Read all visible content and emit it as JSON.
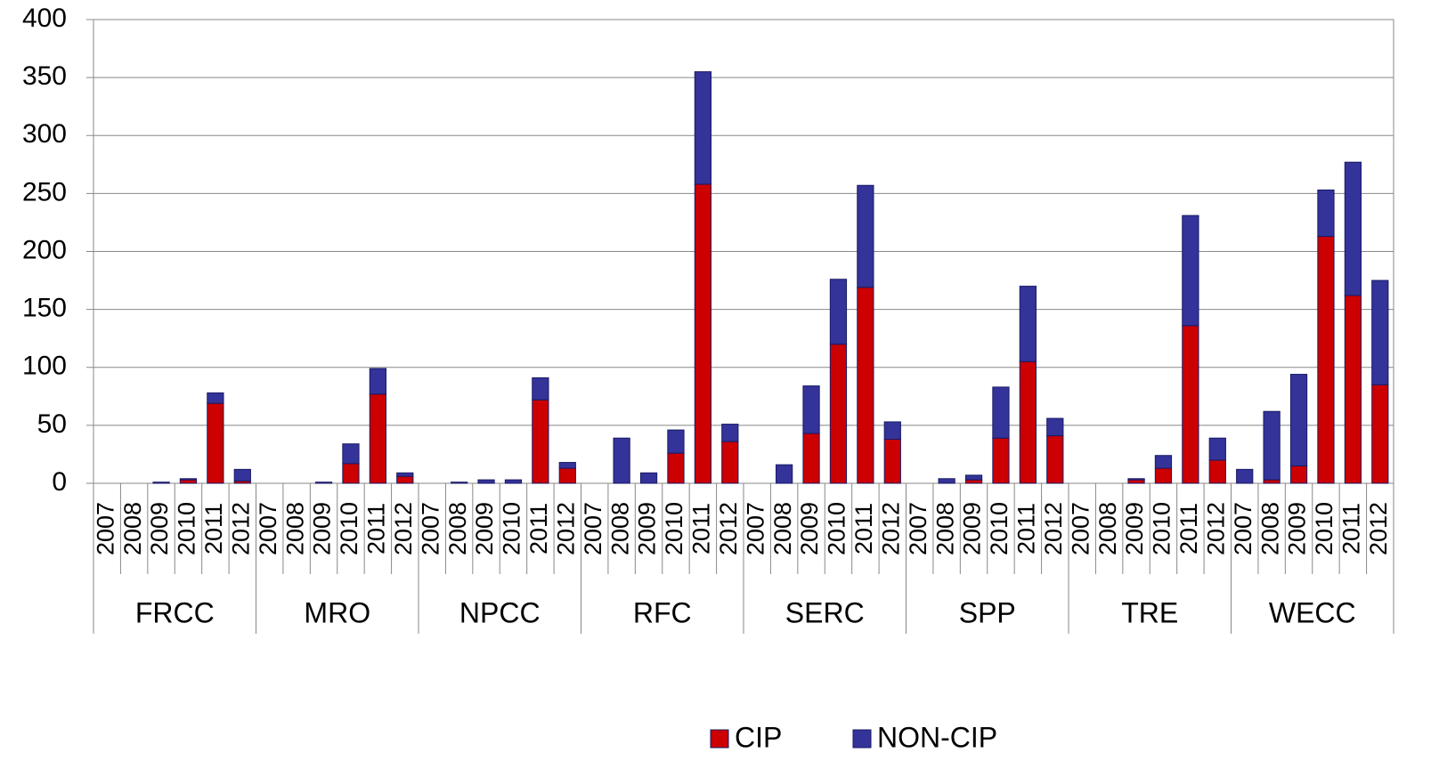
{
  "chart_data": {
    "type": "stacked_bar",
    "groups": [
      "FRCC",
      "MRO",
      "NPCC",
      "RFC",
      "SERC",
      "SPP",
      "TRE",
      "WECC"
    ],
    "categories": [
      "2007",
      "2008",
      "2009",
      "2010",
      "2011",
      "2012",
      "2007",
      "2008",
      "2009",
      "2010",
      "2011",
      "2012",
      "2007",
      "2008",
      "2009",
      "2010",
      "2011",
      "2012",
      "2007",
      "2008",
      "2009",
      "2010",
      "2011",
      "2012",
      "2007",
      "2008",
      "2009",
      "2010",
      "2011",
      "2012",
      "2007",
      "2008",
      "2009",
      "2010",
      "2011",
      "2012",
      "2007",
      "2008",
      "2009",
      "2010",
      "2011",
      "2012",
      "2007",
      "2008",
      "2009",
      "2010",
      "2011",
      "2012"
    ],
    "series": [
      {
        "name": "CIP",
        "color": "#cc0000",
        "values": [
          0,
          0,
          0,
          3,
          69,
          2,
          0,
          0,
          0,
          17,
          77,
          6,
          0,
          0,
          0,
          0,
          72,
          13,
          0,
          0,
          0,
          26,
          258,
          36,
          0,
          0,
          43,
          120,
          169,
          38,
          0,
          0,
          3,
          39,
          105,
          41,
          0,
          0,
          3,
          13,
          136,
          20,
          0,
          3,
          15,
          213,
          162,
          85
        ]
      },
      {
        "name": "NON-CIP",
        "color": "#333399",
        "values": [
          0,
          0,
          1,
          1,
          9,
          10,
          0,
          0,
          1,
          17,
          22,
          3,
          0,
          1,
          3,
          3,
          19,
          5,
          0,
          39,
          9,
          20,
          97,
          15,
          0,
          16,
          41,
          56,
          88,
          15,
          0,
          4,
          4,
          44,
          65,
          15,
          0,
          0,
          1,
          11,
          95,
          19,
          12,
          59,
          79,
          40,
          115,
          90
        ]
      }
    ],
    "ylim": [
      0,
      400
    ],
    "yticks": [
      0,
      50,
      100,
      150,
      200,
      250,
      300,
      350,
      400
    ],
    "grid": true,
    "legend": "bottom"
  }
}
